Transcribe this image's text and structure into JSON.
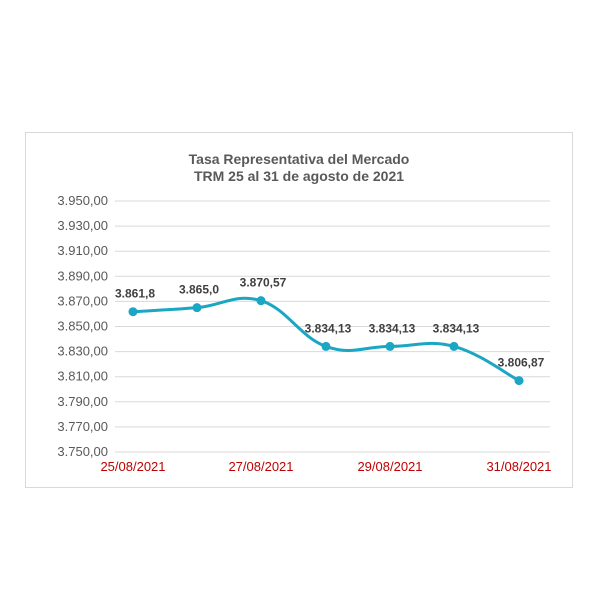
{
  "chart_data": {
    "type": "line",
    "title": "Tasa Representativa del Mercado",
    "subtitle": "TRM 25 al 31 de agosto de 2021",
    "ylim": [
      3750,
      3950
    ],
    "y_ticks": [
      "3.750,00",
      "3.770,00",
      "3.790,00",
      "3.810,00",
      "3.830,00",
      "3.850,00",
      "3.870,00",
      "3.890,00",
      "3.910,00",
      "3.930,00",
      "3.950,00"
    ],
    "x_tick_labels": [
      "25/08/2021",
      "27/08/2021",
      "29/08/2021",
      "31/08/2021"
    ],
    "x": [
      "25/08/2021",
      "26/08/2021",
      "27/08/2021",
      "28/08/2021",
      "29/08/2021",
      "30/08/2021",
      "31/08/2021"
    ],
    "values": [
      3861.8,
      3865.0,
      3870.57,
      3834.13,
      3834.13,
      3834.13,
      3806.87
    ],
    "data_labels": [
      "3.861,8",
      "3.865,0",
      "3.870,57",
      "3.834,13",
      "3.834,13",
      "3.834,13",
      "3.806,87"
    ],
    "grid": true,
    "colors": {
      "line": "#1ba6c4",
      "tick_x": "#c00000",
      "tick_y": "#595959",
      "grid": "#d9d9d9",
      "label": "#404040"
    }
  }
}
